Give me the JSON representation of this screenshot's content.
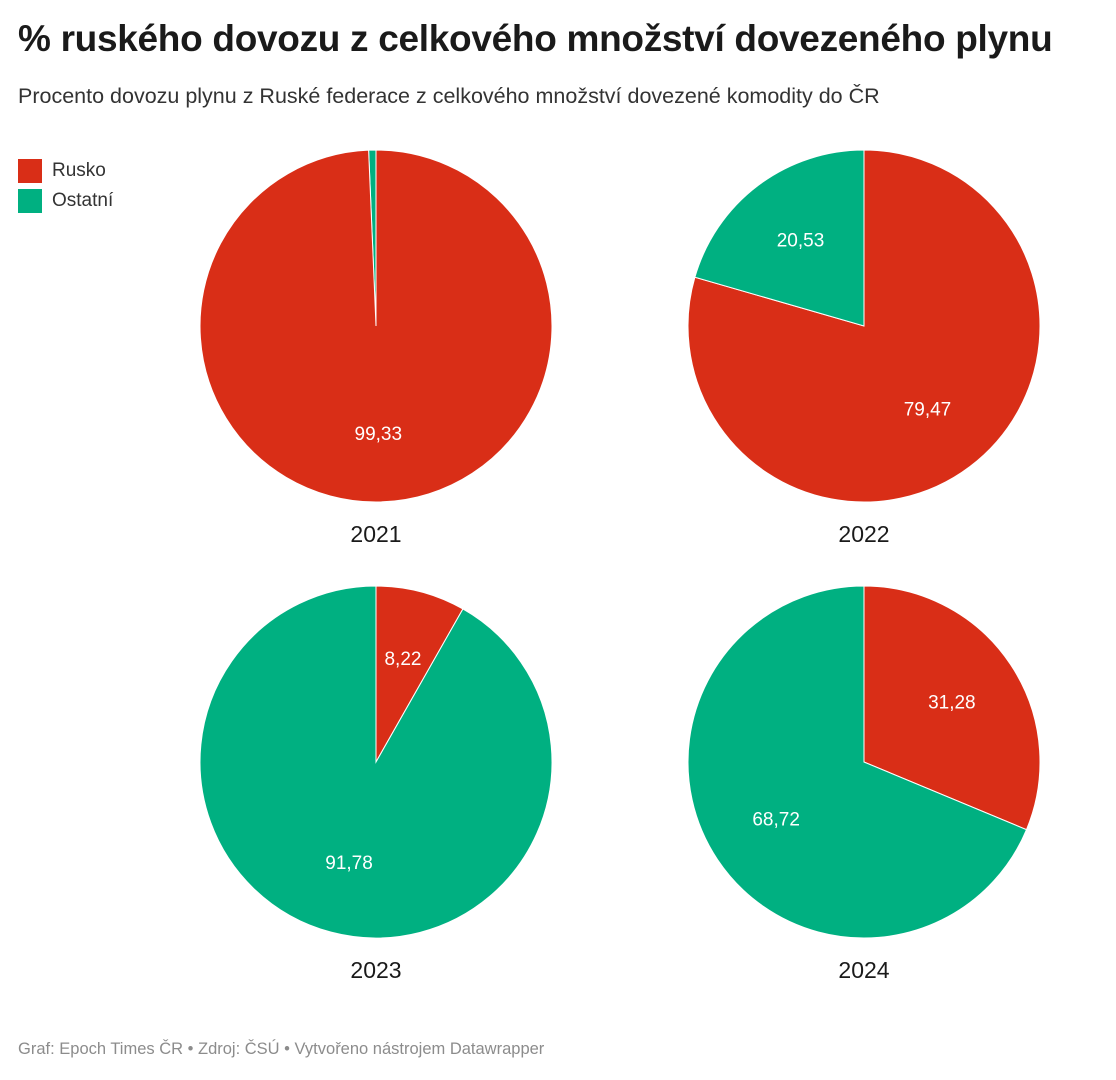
{
  "header": {
    "title": "% ruského dovozu z celkového množství dovezeného plynu",
    "subtitle": "Procento dovozu plynu z Ruské federace z celkového množství dovezené komodity do ČR"
  },
  "colors": {
    "rusko": "#d92e17",
    "ostatni": "#00b081"
  },
  "footer": {
    "text": "Graf: Epoch Times ČR • Zdroj: ČSÚ • Vytvořeno nástrojem Datawrapper"
  },
  "chart_data": {
    "type": "pie",
    "legend_position": "top-left",
    "series_names": [
      "Rusko",
      "Ostatní"
    ],
    "charts": [
      {
        "year": "2021",
        "slices": [
          {
            "name": "Rusko",
            "value": 99.33,
            "label": "99,33"
          },
          {
            "name": "Ostatní",
            "value": 0.67,
            "label": ""
          }
        ]
      },
      {
        "year": "2022",
        "slices": [
          {
            "name": "Rusko",
            "value": 79.47,
            "label": "79,47"
          },
          {
            "name": "Ostatní",
            "value": 20.53,
            "label": "20,53"
          }
        ]
      },
      {
        "year": "2023",
        "slices": [
          {
            "name": "Rusko",
            "value": 8.22,
            "label": "8,22"
          },
          {
            "name": "Ostatní",
            "value": 91.78,
            "label": "91,78"
          }
        ]
      },
      {
        "year": "2024",
        "slices": [
          {
            "name": "Rusko",
            "value": 31.28,
            "label": "31,28"
          },
          {
            "name": "Ostatní",
            "value": 68.72,
            "label": "68,72"
          }
        ]
      }
    ]
  }
}
